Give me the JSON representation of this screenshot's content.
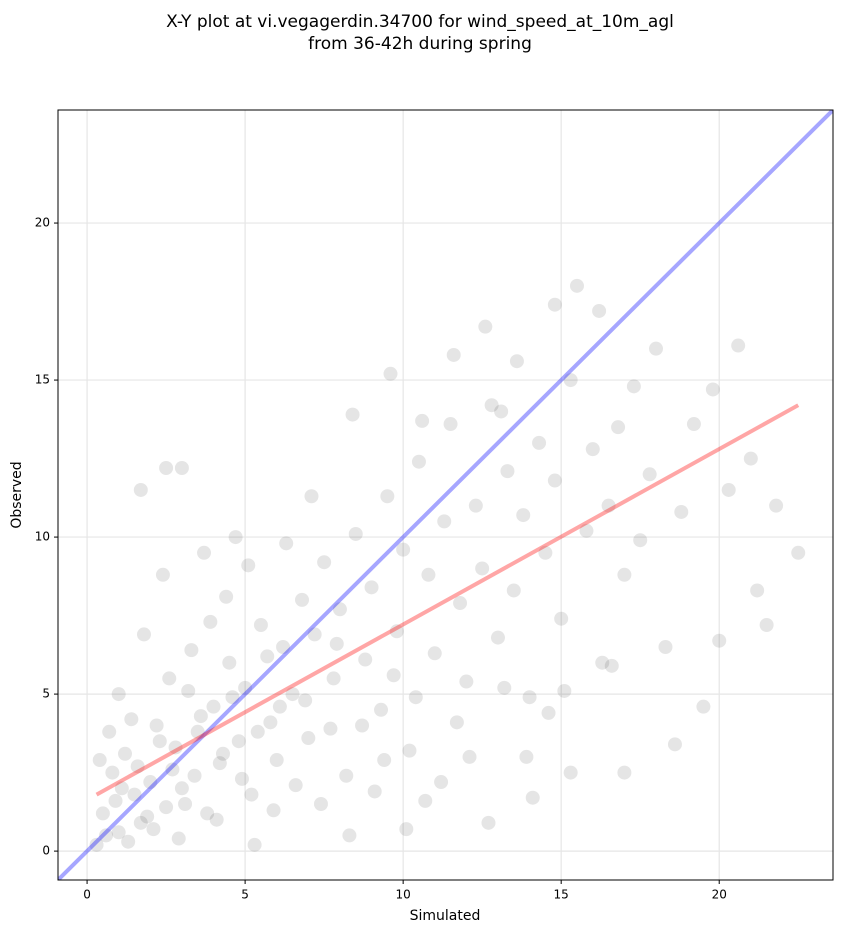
{
  "chart_data": {
    "type": "scatter",
    "title": [
      "X-Y plot at vi.vegagerdin.34700 for wind_speed_at_10m_agl",
      "from 36-42h during spring"
    ],
    "x_label": "Simulated",
    "y_label": "Observed",
    "xlim": [
      -0.92,
      23.6
    ],
    "ylim": [
      -0.92,
      23.6
    ],
    "xticks": [
      0,
      5,
      10,
      15,
      20
    ],
    "yticks": [
      0,
      5,
      10,
      15,
      20
    ],
    "grid": true,
    "color": "#000000",
    "opacity": 0.1,
    "x": [
      0.5,
      0.8,
      1.0,
      1.2,
      1.5,
      1.7,
      2.0,
      2.2,
      2.5,
      2.8,
      3.0,
      3.2,
      3.5,
      3.8,
      4.0,
      4.2,
      4.5,
      4.8,
      5.0,
      5.2,
      5.5,
      5.8,
      6.0,
      6.2,
      6.5,
      6.8,
      7.0,
      7.2,
      7.5,
      7.8,
      8.0,
      8.2,
      8.5,
      8.8,
      9.0,
      9.3,
      9.5,
      9.8,
      10.0,
      10.2,
      10.5,
      10.8,
      11.0,
      11.3,
      11.5,
      11.8,
      12.0,
      12.3,
      12.5,
      12.8,
      13.0,
      13.3,
      13.5,
      13.8,
      14.0,
      14.3,
      14.5,
      14.8,
      15.0,
      15.3,
      15.5,
      15.8,
      16.0,
      16.3,
      16.5,
      16.8,
      17.0,
      17.3,
      17.5,
      17.8,
      18.0,
      18.3,
      18.6,
      18.8,
      19.2,
      19.5,
      19.8,
      20.0,
      20.3,
      20.6,
      21.0,
      21.2,
      21.5,
      21.8,
      22.5,
      2.5,
      3.0,
      1.7,
      17.0,
      15.3,
      12.6,
      14.8,
      16.2,
      0.3,
      0.6,
      0.9,
      1.1,
      1.3,
      1.4,
      1.6,
      1.9,
      2.1,
      2.3,
      2.6,
      2.7,
      2.9,
      3.1,
      3.3,
      3.4,
      3.6,
      3.9,
      4.1,
      4.3,
      4.4,
      4.6,
      4.9,
      5.1,
      5.3,
      5.4,
      5.7,
      5.9,
      6.1,
      6.3,
      6.6,
      6.9,
      7.1,
      7.4,
      7.7,
      7.9,
      8.3,
      8.7,
      9.1,
      9.4,
      9.7,
      10.1,
      10.4,
      10.7,
      11.2,
      11.7,
      12.1,
      12.7,
      13.2,
      14.1,
      14.6,
      15.1,
      13.9,
      16.6,
      0.4,
      0.7,
      1.0,
      1.8,
      2.4,
      3.7,
      4.7,
      8.4,
      9.6,
      10.6,
      11.6,
      13.6,
      13.1
    ],
    "values": [
      1.2,
      2.5,
      0.6,
      3.1,
      1.8,
      0.9,
      2.2,
      4.0,
      1.4,
      3.3,
      2.0,
      5.1,
      3.8,
      1.2,
      4.6,
      2.8,
      6.0,
      3.5,
      5.2,
      1.8,
      7.2,
      4.1,
      2.9,
      6.5,
      5.0,
      8.0,
      3.6,
      6.9,
      9.2,
      5.5,
      7.7,
      2.4,
      10.1,
      6.1,
      8.4,
      4.5,
      11.3,
      7.0,
      9.6,
      3.2,
      12.4,
      8.8,
      6.3,
      10.5,
      13.6,
      7.9,
      5.4,
      11.0,
      9.0,
      14.2,
      6.8,
      12.1,
      8.3,
      10.7,
      4.9,
      13.0,
      9.5,
      11.8,
      7.4,
      15.0,
      18.0,
      10.2,
      12.8,
      6.0,
      11.0,
      13.5,
      8.8,
      14.8,
      9.9,
      12.0,
      16.0,
      6.5,
      3.4,
      10.8,
      13.6,
      4.6,
      14.7,
      6.7,
      11.5,
      16.1,
      12.5,
      8.3,
      7.2,
      11.0,
      9.5,
      12.2,
      12.2,
      11.5,
      2.5,
      2.5,
      16.7,
      17.4,
      17.2,
      0.2,
      0.5,
      1.6,
      2.0,
      0.3,
      4.2,
      2.7,
      1.1,
      0.7,
      3.5,
      5.5,
      2.6,
      0.4,
      1.5,
      6.4,
      2.4,
      4.3,
      7.3,
      1.0,
      3.1,
      8.1,
      4.9,
      2.3,
      9.1,
      0.2,
      3.8,
      6.2,
      1.3,
      4.6,
      9.8,
      2.1,
      4.8,
      11.3,
      1.5,
      3.9,
      6.6,
      0.5,
      4.0,
      1.9,
      2.9,
      5.6,
      0.7,
      4.9,
      1.6,
      2.2,
      4.1,
      3.0,
      0.9,
      5.2,
      1.7,
      4.4,
      5.1,
      3.0,
      5.9,
      2.9,
      3.8,
      5.0,
      6.9,
      8.8,
      9.5,
      10.0,
      13.9,
      15.2,
      13.7,
      15.8,
      15.6,
      14.0
    ],
    "lines": [
      {
        "color": "#0000ff",
        "x": [
          -0.92,
          23.6
        ],
        "values": [
          -0.92,
          23.6
        ]
      },
      {
        "color": "#ff0000",
        "x": [
          0.3,
          22.5
        ],
        "values": [
          1.8,
          14.2
        ]
      }
    ]
  }
}
